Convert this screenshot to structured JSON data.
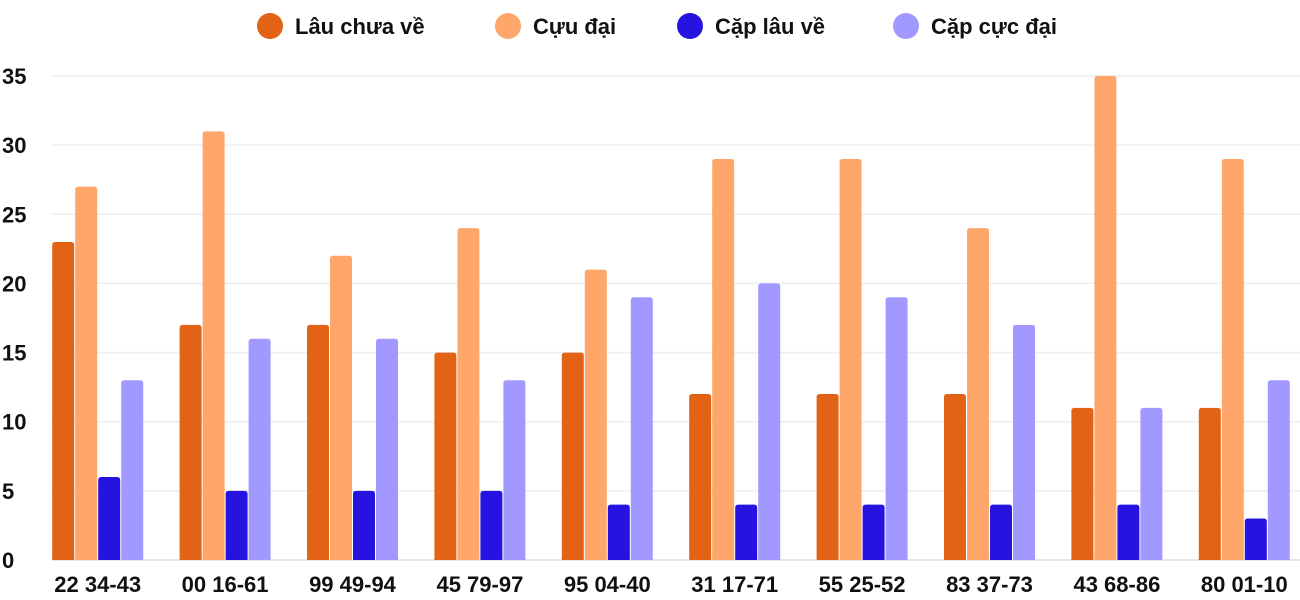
{
  "chart_data": {
    "type": "bar",
    "categories": [
      "22 34-43",
      "00 16-61",
      "99 49-94",
      "45 79-97",
      "95 04-40",
      "31 17-71",
      "55 25-52",
      "83 37-73",
      "43 68-86",
      "80 01-10"
    ],
    "series": [
      {
        "name": "Lâu chưa về",
        "color": "#E26316",
        "values": [
          23,
          17,
          17,
          15,
          15,
          12,
          12,
          12,
          11,
          11
        ]
      },
      {
        "name": "Cựu đại",
        "color": "#FFA66B",
        "values": [
          27,
          31,
          22,
          24,
          21,
          29,
          29,
          24,
          35,
          29
        ]
      },
      {
        "name": "Cặp lâu về",
        "color": "#2713E0",
        "values": [
          6,
          5,
          5,
          5,
          4,
          4,
          4,
          4,
          4,
          3
        ]
      },
      {
        "name": "Cặp cực đại",
        "color": "#A199FF",
        "values": [
          13,
          16,
          16,
          13,
          19,
          20,
          19,
          17,
          11,
          13
        ]
      }
    ],
    "yticks": [
      "0",
      "5",
      "10",
      "15",
      "20",
      "25",
      "30",
      "35"
    ],
    "ylim": [
      0,
      35
    ],
    "grid": true,
    "legend": "top-center",
    "xlabel": "",
    "ylabel": ""
  }
}
